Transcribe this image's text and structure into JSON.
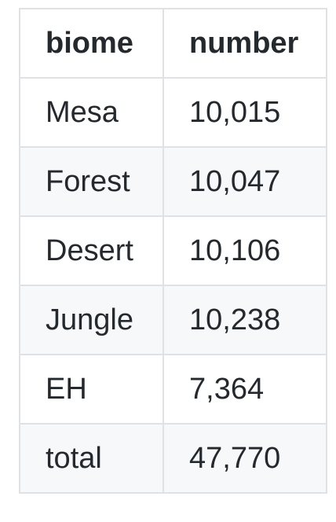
{
  "table": {
    "headers": [
      "biome",
      "number"
    ],
    "rows": [
      [
        "Mesa",
        "10,015"
      ],
      [
        "Forest",
        "10,047"
      ],
      [
        "Desert",
        "10,106"
      ],
      [
        "Jungle",
        "10,238"
      ],
      [
        "EH",
        "7,364"
      ],
      [
        "total",
        "47,770"
      ]
    ]
  }
}
